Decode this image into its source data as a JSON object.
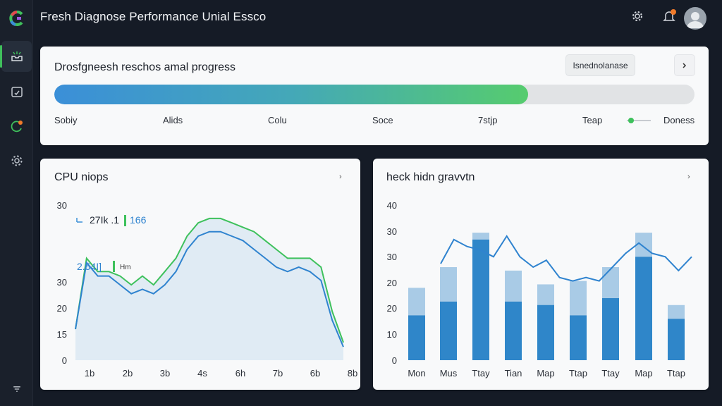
{
  "app": {
    "title": "Fresh Diagnose Performance Unial Essco"
  },
  "sidebar": {
    "items": [
      {
        "name": "inbox-icon",
        "active": true
      },
      {
        "name": "calendar-icon",
        "active": false
      },
      {
        "name": "refresh-icon",
        "active": false,
        "badge": true
      },
      {
        "name": "gear-icon",
        "active": false
      }
    ],
    "bottom_icon": "filter-icon"
  },
  "colors": {
    "accent_green": "#3fbf5c",
    "accent_blue": "#3b8fd8",
    "badge_orange": "#f07a2a"
  },
  "progress_card": {
    "title": "Drosfgneesh reschos amal progress",
    "chip_label": "Isnednolanase",
    "progress_fraction": 0.74,
    "steps": [
      "Sobiy",
      "Alids",
      "Colu",
      "Soce",
      "7stjp",
      "Teap"
    ],
    "legend_label": "Doness"
  },
  "cpu_card": {
    "title": "CPU niops",
    "annotation_top": "27Ik .1",
    "annotation_top_value": "166",
    "annotation_mid": "2.54I]",
    "annotation_mid_suffix": "Hm"
  },
  "growth_card": {
    "title": "heck hidn gravvtn"
  },
  "chart_data": [
    {
      "type": "area",
      "title": "CPU niops",
      "x_tick_labels": [
        "1b",
        "2b",
        "3b",
        "4s",
        "6h",
        "7b",
        "6b",
        "8b"
      ],
      "y_tick_labels": [
        "0",
        "15",
        "20",
        "30",
        "",
        "30"
      ],
      "ylim": [
        0,
        35
      ],
      "series": [
        {
          "color": "#3ec15c",
          "values": [
            7,
            23,
            20,
            20,
            19,
            17,
            19,
            17,
            20,
            23,
            28,
            31,
            32,
            32,
            31,
            30,
            29,
            27,
            25,
            23,
            23,
            23,
            21,
            11,
            4
          ]
        },
        {
          "color": "#3b8fd8",
          "values": [
            7,
            22,
            19,
            19,
            17,
            15,
            16,
            15,
            17,
            20,
            25,
            28,
            29,
            29,
            28,
            27,
            25,
            23,
            21,
            20,
            21,
            20,
            18,
            9,
            3
          ]
        }
      ]
    },
    {
      "type": "bar",
      "title": "heck hidn gravvtn",
      "categories": [
        "Mon",
        "Mus",
        "Ttay",
        "Tian",
        "Map",
        "Ttap",
        "Ttay",
        "Map",
        "Ttap"
      ],
      "y_tick_labels": [
        "0",
        "10",
        "20",
        "20",
        "30",
        "30",
        "40"
      ],
      "ylim": [
        0,
        45
      ],
      "series": [
        {
          "name": "",
          "values": [
            13,
            17,
            35,
            17,
            16,
            13,
            18,
            30,
            12
          ]
        },
        {
          "name": "",
          "values": [
            21,
            27,
            37,
            26,
            22,
            23,
            27,
            37,
            16
          ]
        }
      ],
      "line_series": [
        28,
        35,
        33,
        32,
        30,
        36,
        30,
        27,
        29,
        24,
        23,
        24,
        23,
        27,
        31,
        34,
        31,
        30,
        26,
        30
      ]
    }
  ]
}
